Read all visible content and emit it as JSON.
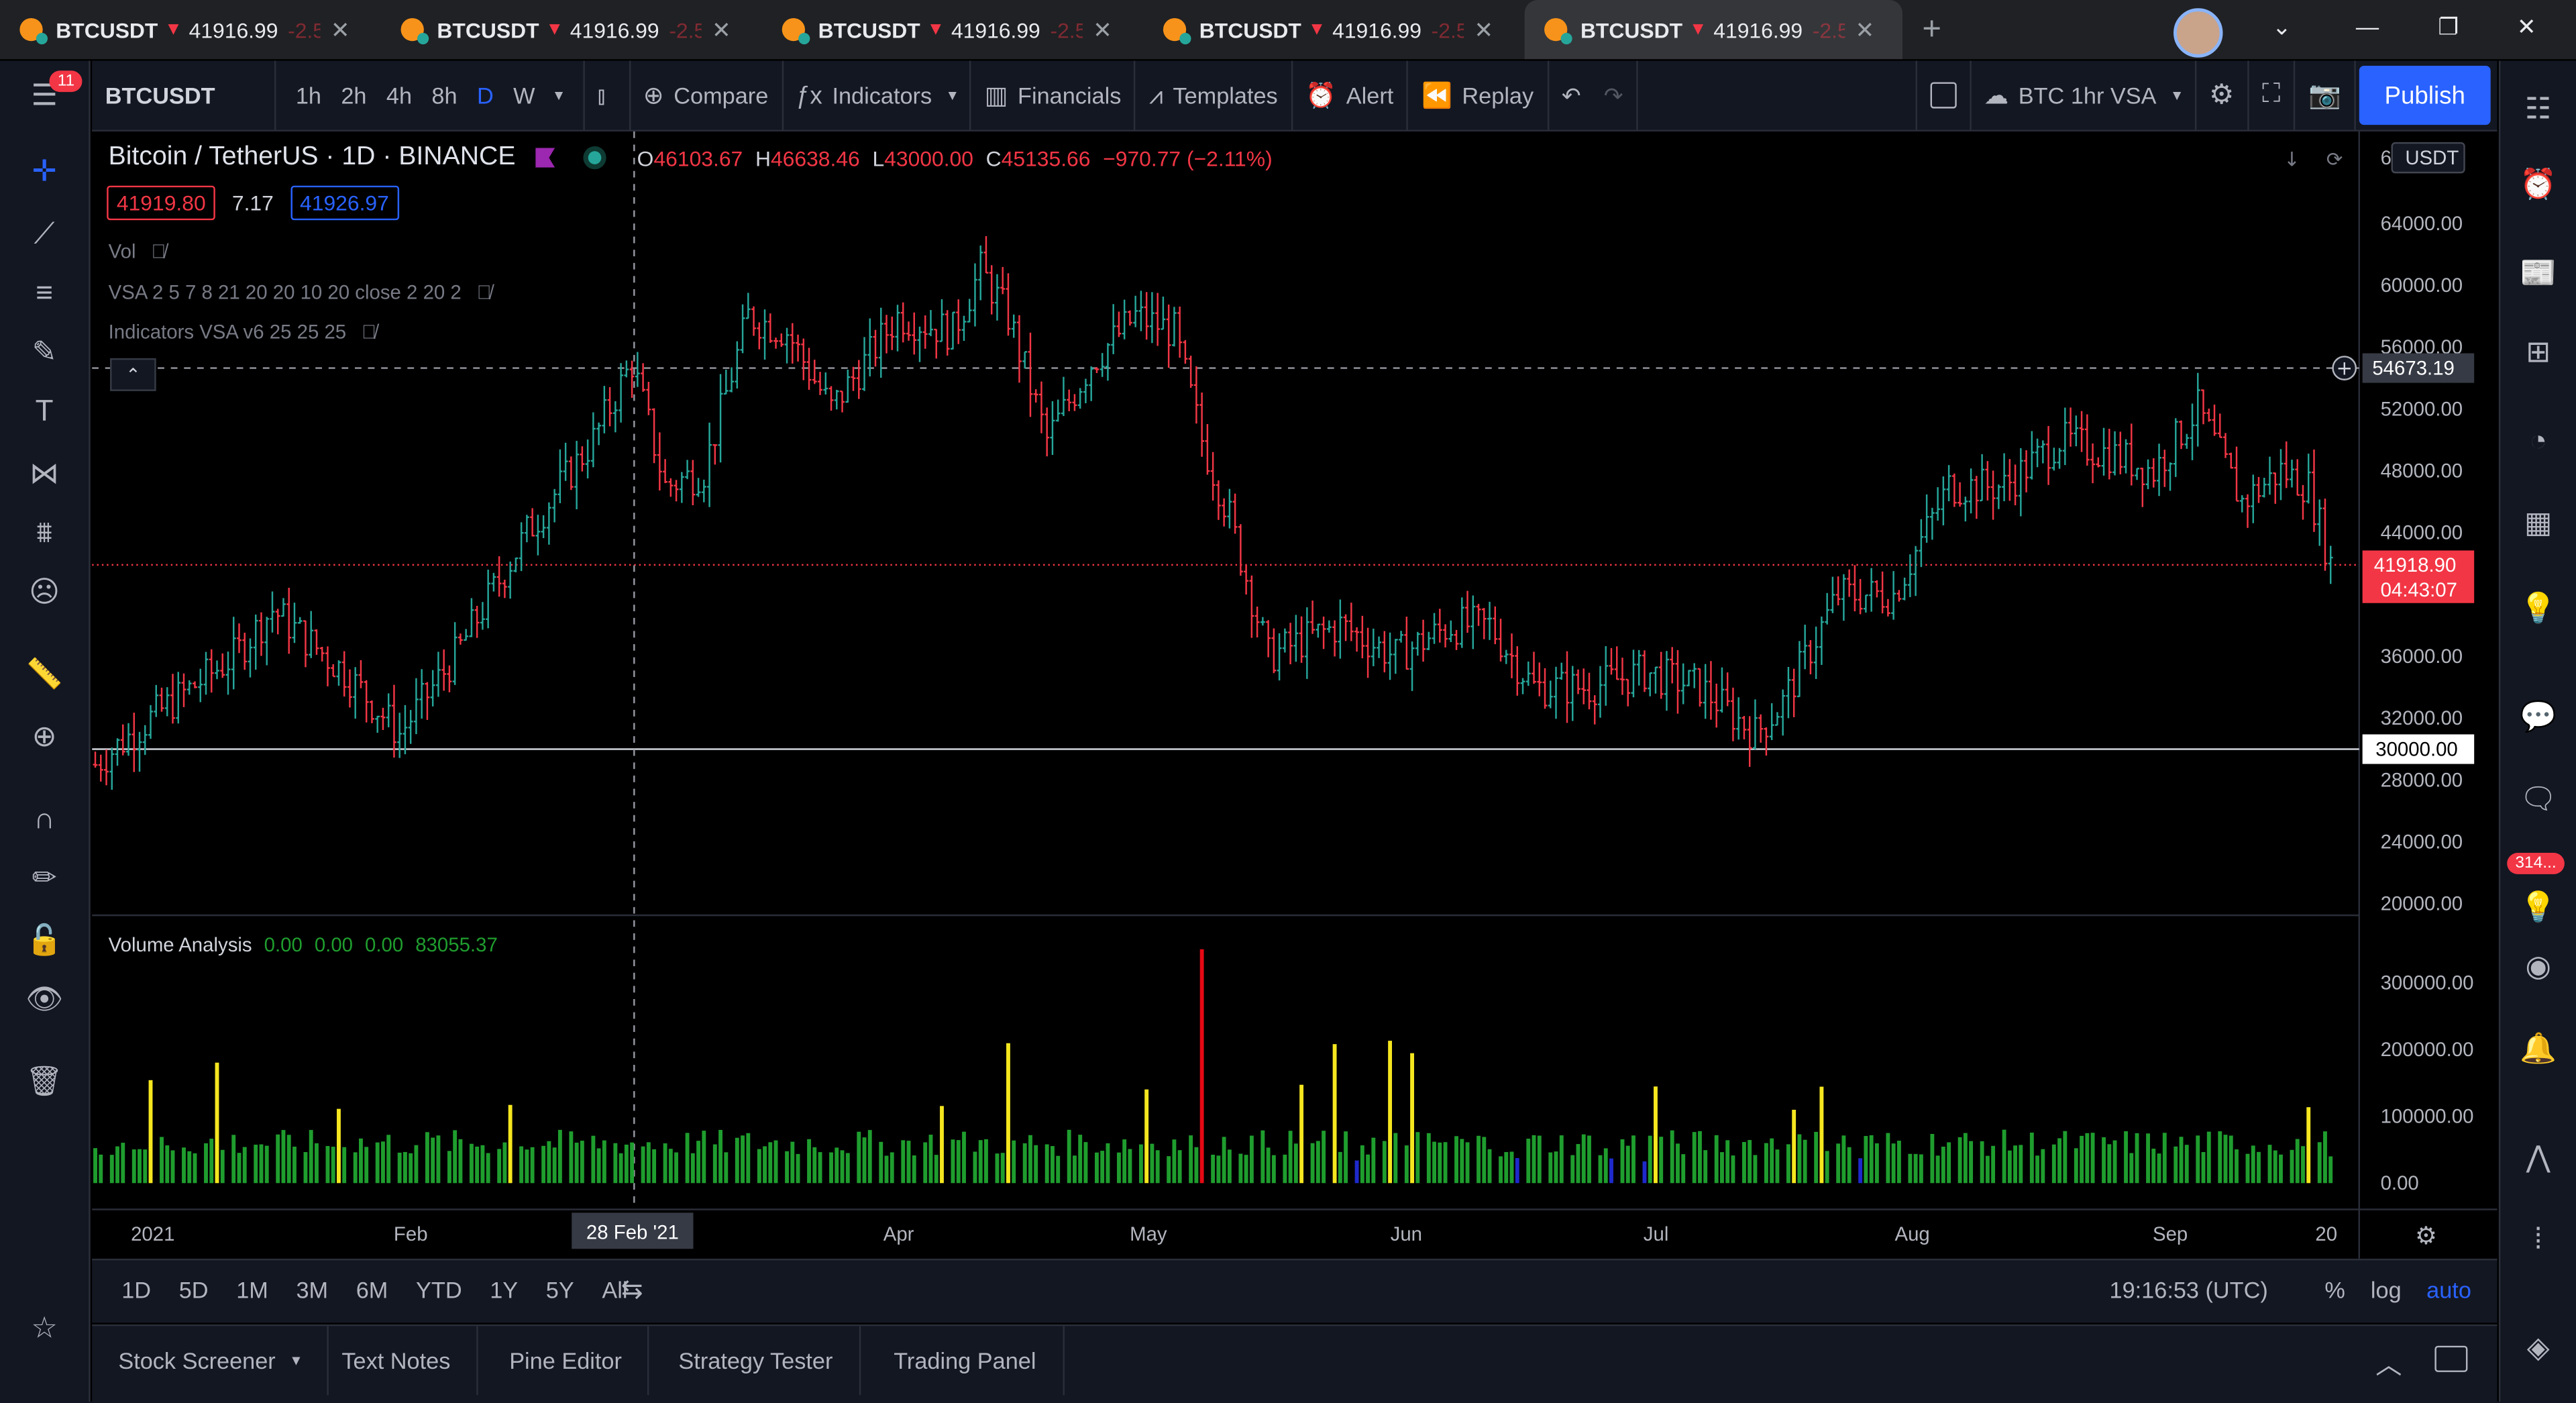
{
  "tabs": [
    {
      "symbol": "BTCUSDT",
      "price": "41916.99",
      "change": "-2.5"
    },
    {
      "symbol": "BTCUSDT",
      "price": "41916.99",
      "change": "-2.5"
    },
    {
      "symbol": "BTCUSDT",
      "price": "41916.99",
      "change": "-2.5"
    },
    {
      "symbol": "BTCUSDT",
      "price": "41916.99",
      "change": "-2.5"
    },
    {
      "symbol": "BTCUSDT",
      "price": "41916.99",
      "change": "-2.5"
    }
  ],
  "toolbar": {
    "symbol": "BTCUSDT",
    "intervals": [
      "1h",
      "2h",
      "4h",
      "8h",
      "D",
      "W"
    ],
    "active_interval": "D",
    "compare": "Compare",
    "indicators": "Indicators",
    "financials": "Financials",
    "templates": "Templates",
    "alert": "Alert",
    "replay": "Replay",
    "layout_name": "BTC 1hr VSA",
    "publish": "Publish"
  },
  "left_badge": "11",
  "right_badge": "314...",
  "legend": {
    "title": "Bitcoin / TetherUS · 1D · BINANCE",
    "o_label": "O",
    "o": "46103.67",
    "h_label": "H",
    "h": "46638.46",
    "l_label": "L",
    "l": "43000.00",
    "c_label": "C",
    "c": "45135.66",
    "chg": "−970.77 (−2.11%)",
    "bid": "41919.80",
    "spread": "7.17",
    "ask": "41926.97",
    "ind1": "Vol",
    "ind2": "VSA 2 5 7 8 21 20 20 10 20 close 2 20 2",
    "ind3": "Indicators VSA v6 25 25 25"
  },
  "price_axis": {
    "currency": "USDT",
    "ticks": [
      "64000.00",
      "60000.00",
      "56000.00",
      "52000.00",
      "48000.00",
      "44000.00",
      "36000.00",
      "32000.00",
      "28000.00",
      "24000.00",
      "20000.00"
    ],
    "top_tick": "68000.00",
    "crosshair_label": "54673.19",
    "last_price": "41918.90",
    "countdown": "04:43:07",
    "hline_label": "30000.00"
  },
  "volume": {
    "title": "Volume Analysis",
    "v1": "0.00",
    "v2": "0.00",
    "v3": "0.00",
    "v4": "83055.37",
    "ticks": [
      "300000.00",
      "200000.00",
      "100000.00",
      "0.00"
    ]
  },
  "time_axis": {
    "labels": [
      "2021",
      "Feb",
      "Apr",
      "May",
      "Jun",
      "Jul",
      "Aug",
      "Sep",
      "20"
    ],
    "crosshair": "28 Feb '21"
  },
  "range": {
    "buttons": [
      "1D",
      "5D",
      "1M",
      "3M",
      "6M",
      "YTD",
      "1Y",
      "5Y",
      "All"
    ],
    "clock": "19:16:53 (UTC)",
    "pct": "%",
    "log": "log",
    "auto": "auto"
  },
  "bottom": {
    "tabs": [
      "Stock Screener",
      "Text Notes",
      "Pine Editor",
      "Strategy Tester",
      "Trading Panel"
    ]
  },
  "colors": {
    "up": "#26a69a",
    "down": "#f23645",
    "vol_green": "#1f9d2e",
    "vol_yellow": "#f5e61f",
    "vol_red": "#e50914",
    "vol_blue": "#1e2acb",
    "accent": "#2962ff"
  }
}
